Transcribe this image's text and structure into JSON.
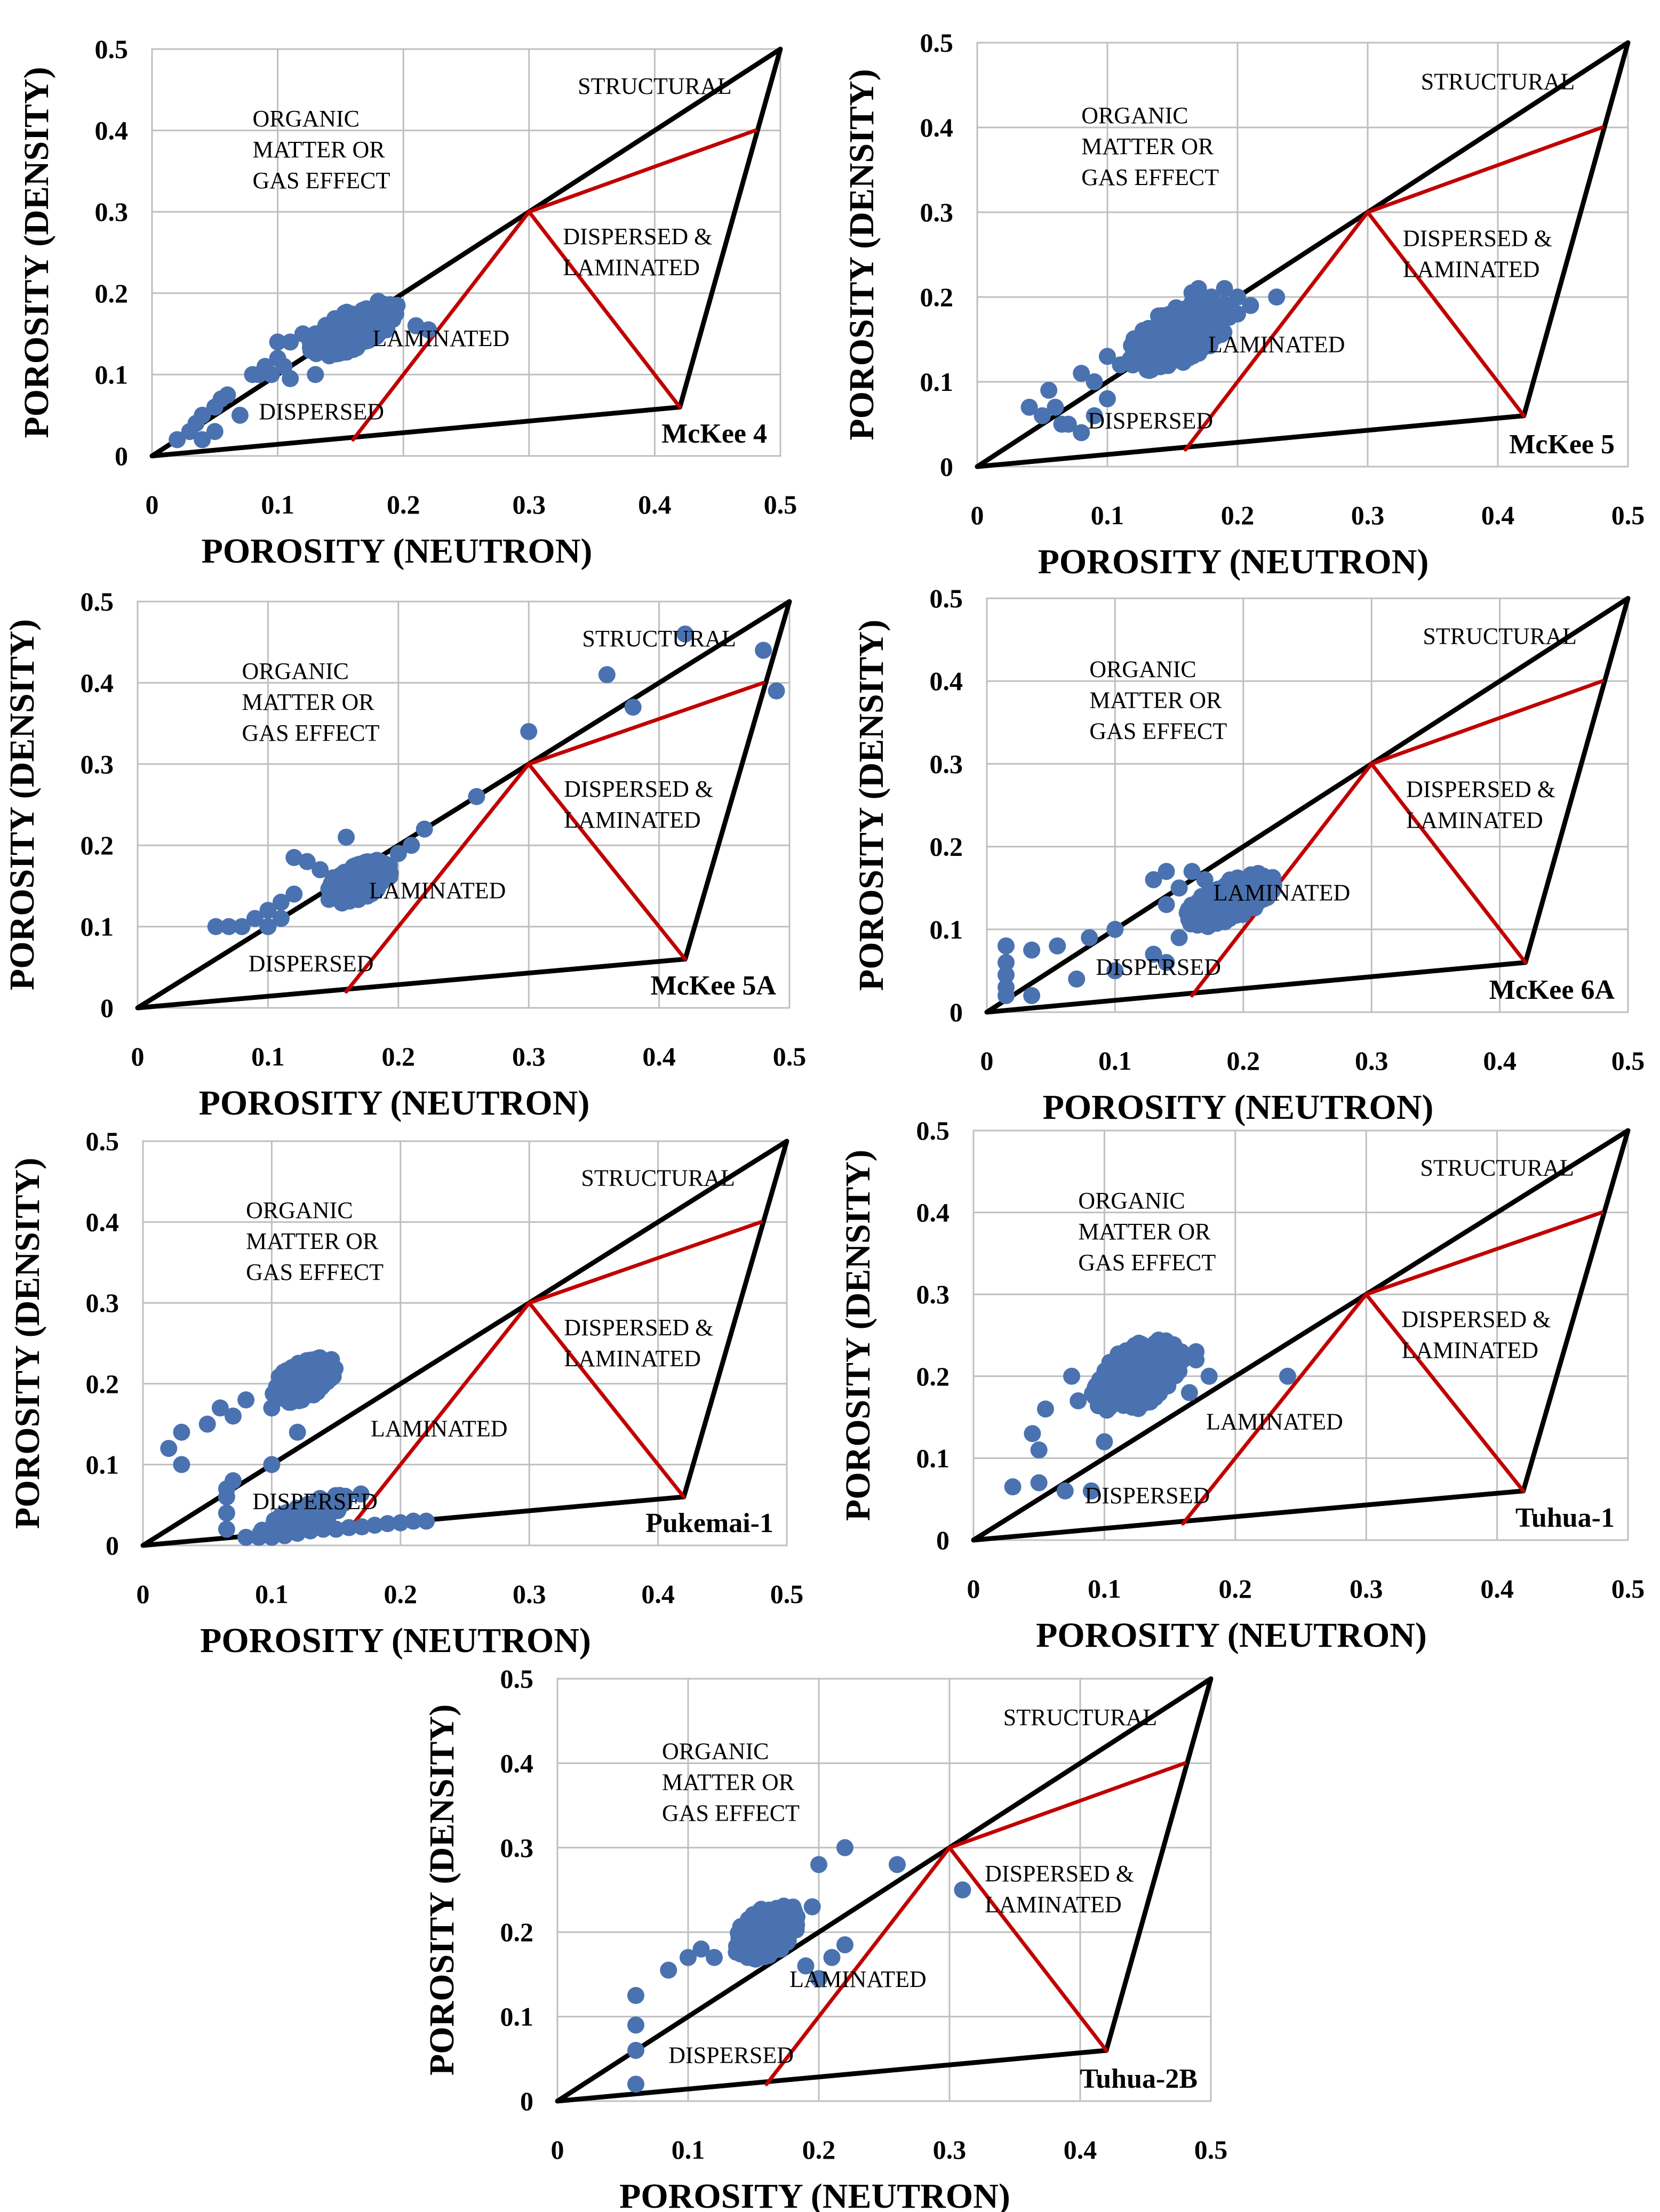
{
  "figure": {
    "background": "#ffffff"
  },
  "colors": {
    "boundary": "#000000",
    "model_lines": "#c00000",
    "points": "#4a72b0",
    "grid": "#bfbfbf"
  },
  "region_labels": {
    "structural": "STRUCTURAL",
    "organic": [
      "ORGANIC",
      "MATTER OR",
      "GAS EFFECT"
    ],
    "dispersed_laminated": [
      "DISPERSED &",
      "LAMINATED"
    ],
    "laminated": "LAMINATED",
    "dispersed": "DISPERSED"
  },
  "chart_data": [
    {
      "type": "scatter",
      "title": "McKee 4",
      "xlabel": "POROSITY (NEUTRON)",
      "ylabel": "POROSITY (DENSITY)",
      "xlim": [
        0,
        0.5
      ],
      "ylim": [
        0,
        0.5
      ],
      "xticks": [
        "0",
        "0.1",
        "0.2",
        "0.3",
        "0.4",
        "0.5"
      ],
      "yticks": [
        "0",
        "0.1",
        "0.2",
        "0.3",
        "0.4",
        "0.5"
      ],
      "model": {
        "clean": [
          0,
          0
        ],
        "shale": [
          0.42,
          0.06
        ],
        "apex": [
          0.5,
          0.5
        ],
        "tie": [
          0.3,
          0.3
        ],
        "struct": [
          0.48,
          0.4
        ],
        "base": [
          0.16,
          0.02
        ]
      },
      "cloud": [
        {
          "cx": 0.16,
          "cy": 0.155,
          "rx": 0.035,
          "ry": 0.025,
          "n": 200,
          "seed": 11
        }
      ],
      "points": [
        [
          0.02,
          0.02
        ],
        [
          0.03,
          0.03
        ],
        [
          0.035,
          0.04
        ],
        [
          0.04,
          0.05
        ],
        [
          0.05,
          0.06
        ],
        [
          0.055,
          0.07
        ],
        [
          0.06,
          0.075
        ],
        [
          0.07,
          0.05
        ],
        [
          0.08,
          0.1
        ],
        [
          0.085,
          0.1
        ],
        [
          0.09,
          0.11
        ],
        [
          0.095,
          0.1
        ],
        [
          0.1,
          0.12
        ],
        [
          0.105,
          0.11
        ],
        [
          0.1,
          0.14
        ],
        [
          0.11,
          0.14
        ],
        [
          0.11,
          0.095
        ],
        [
          0.12,
          0.15
        ],
        [
          0.13,
          0.15
        ],
        [
          0.13,
          0.1
        ],
        [
          0.21,
          0.16
        ],
        [
          0.22,
          0.155
        ],
        [
          0.19,
          0.18
        ],
        [
          0.18,
          0.19
        ],
        [
          0.195,
          0.185
        ],
        [
          0.04,
          0.02
        ],
        [
          0.05,
          0.03
        ]
      ]
    },
    {
      "type": "scatter",
      "title": "McKee 5",
      "xlabel": "POROSITY (NEUTRON)",
      "ylabel": "POROSITY (DENSITY)",
      "xlim": [
        0,
        0.5
      ],
      "ylim": [
        0,
        0.5
      ],
      "xticks": [
        "0",
        "0.1",
        "0.2",
        "0.3",
        "0.4",
        "0.5"
      ],
      "yticks": [
        "0",
        "0.1",
        "0.2",
        "0.3",
        "0.4",
        "0.5"
      ],
      "model": {
        "clean": [
          0,
          0
        ],
        "shale": [
          0.42,
          0.06
        ],
        "apex": [
          0.5,
          0.5
        ],
        "tie": [
          0.3,
          0.3
        ],
        "struct": [
          0.48,
          0.4
        ],
        "base": [
          0.16,
          0.02
        ]
      },
      "cloud": [
        {
          "cx": 0.155,
          "cy": 0.155,
          "rx": 0.04,
          "ry": 0.035,
          "n": 170,
          "seed": 23
        }
      ],
      "points": [
        [
          0.04,
          0.07
        ],
        [
          0.05,
          0.06
        ],
        [
          0.055,
          0.09
        ],
        [
          0.06,
          0.07
        ],
        [
          0.07,
          0.05
        ],
        [
          0.08,
          0.04
        ],
        [
          0.08,
          0.11
        ],
        [
          0.09,
          0.1
        ],
        [
          0.1,
          0.13
        ],
        [
          0.1,
          0.08
        ],
        [
          0.11,
          0.12
        ],
        [
          0.12,
          0.14
        ],
        [
          0.2,
          0.2
        ],
        [
          0.21,
          0.19
        ],
        [
          0.23,
          0.2
        ],
        [
          0.19,
          0.21
        ],
        [
          0.2,
          0.18
        ],
        [
          0.18,
          0.2
        ],
        [
          0.17,
          0.21
        ],
        [
          0.165,
          0.205
        ],
        [
          0.065,
          0.05
        ],
        [
          0.09,
          0.06
        ]
      ]
    },
    {
      "type": "scatter",
      "title": "McKee 5A",
      "xlabel": "POROSITY (NEUTRON)",
      "ylabel": "POROSITY (DENSITY)",
      "xlim": [
        0,
        0.5
      ],
      "ylim": [
        0,
        0.5
      ],
      "xticks": [
        "0",
        "0.1",
        "0.2",
        "0.3",
        "0.4",
        "0.5"
      ],
      "yticks": [
        "0",
        "0.1",
        "0.2",
        "0.3",
        "0.4",
        "0.5"
      ],
      "model": {
        "clean": [
          0,
          0
        ],
        "shale": [
          0.42,
          0.06
        ],
        "apex": [
          0.5,
          0.5
        ],
        "tie": [
          0.3,
          0.3
        ],
        "struct": [
          0.48,
          0.4
        ],
        "base": [
          0.16,
          0.02
        ]
      },
      "cloud": [
        {
          "cx": 0.17,
          "cy": 0.155,
          "rx": 0.025,
          "ry": 0.022,
          "n": 190,
          "seed": 37
        }
      ],
      "points": [
        [
          0.06,
          0.1
        ],
        [
          0.07,
          0.1
        ],
        [
          0.08,
          0.1
        ],
        [
          0.09,
          0.11
        ],
        [
          0.1,
          0.12
        ],
        [
          0.11,
          0.13
        ],
        [
          0.12,
          0.14
        ],
        [
          0.12,
          0.185
        ],
        [
          0.13,
          0.18
        ],
        [
          0.14,
          0.17
        ],
        [
          0.15,
          0.16
        ],
        [
          0.16,
          0.21
        ],
        [
          0.2,
          0.19
        ],
        [
          0.21,
          0.2
        ],
        [
          0.22,
          0.22
        ],
        [
          0.26,
          0.26
        ],
        [
          0.3,
          0.34
        ],
        [
          0.36,
          0.41
        ],
        [
          0.38,
          0.37
        ],
        [
          0.42,
          0.46
        ],
        [
          0.48,
          0.44
        ],
        [
          0.49,
          0.39
        ],
        [
          0.1,
          0.1
        ],
        [
          0.11,
          0.11
        ]
      ]
    },
    {
      "type": "scatter",
      "title": "McKee 6A",
      "xlabel": "POROSITY (NEUTRON)",
      "ylabel": "POROSITY (DENSITY)",
      "xlim": [
        0,
        0.5
      ],
      "ylim": [
        0,
        0.5
      ],
      "xticks": [
        "0",
        "0.1",
        "0.2",
        "0.3",
        "0.4",
        "0.5"
      ],
      "yticks": [
        "0",
        "0.1",
        "0.2",
        "0.3",
        "0.4",
        "0.5"
      ],
      "model": {
        "clean": [
          0,
          0
        ],
        "shale": [
          0.42,
          0.06
        ],
        "apex": [
          0.5,
          0.5
        ],
        "tie": [
          0.3,
          0.3
        ],
        "struct": [
          0.48,
          0.4
        ],
        "base": [
          0.16,
          0.02
        ]
      },
      "cloud": [
        {
          "cx": 0.19,
          "cy": 0.135,
          "rx": 0.035,
          "ry": 0.025,
          "n": 170,
          "seed": 41
        }
      ],
      "points": [
        [
          0.015,
          0.08
        ],
        [
          0.015,
          0.06
        ],
        [
          0.015,
          0.045
        ],
        [
          0.015,
          0.03
        ],
        [
          0.015,
          0.02
        ],
        [
          0.035,
          0.075
        ],
        [
          0.035,
          0.02
        ],
        [
          0.055,
          0.08
        ],
        [
          0.08,
          0.09
        ],
        [
          0.07,
          0.04
        ],
        [
          0.1,
          0.1
        ],
        [
          0.13,
          0.16
        ],
        [
          0.14,
          0.17
        ],
        [
          0.15,
          0.15
        ],
        [
          0.14,
          0.13
        ],
        [
          0.13,
          0.07
        ],
        [
          0.14,
          0.06
        ],
        [
          0.1,
          0.05
        ],
        [
          0.15,
          0.09
        ],
        [
          0.17,
          0.16
        ],
        [
          0.16,
          0.17
        ]
      ]
    },
    {
      "type": "scatter",
      "title": "Pukemai-1",
      "xlabel": "POROSITY (NEUTRON)",
      "ylabel": "POROSITY (DENSITY)",
      "xlim": [
        0,
        0.5
      ],
      "ylim": [
        0,
        0.5
      ],
      "xticks": [
        "0",
        "0.1",
        "0.2",
        "0.3",
        "0.4",
        "0.5"
      ],
      "yticks": [
        "0",
        "0.1",
        "0.2",
        "0.3",
        "0.4",
        "0.5"
      ],
      "model": {
        "clean": [
          0,
          0
        ],
        "shale": [
          0.42,
          0.06
        ],
        "apex": [
          0.5,
          0.5
        ],
        "tie": [
          0.3,
          0.3
        ],
        "struct": [
          0.48,
          0.4
        ],
        "base": [
          0.16,
          0.02
        ]
      },
      "cloud": [
        {
          "cx": 0.125,
          "cy": 0.205,
          "rx": 0.025,
          "ry": 0.025,
          "n": 150,
          "seed": 53
        },
        {
          "cx": 0.13,
          "cy": 0.04,
          "rx": 0.04,
          "ry": 0.015,
          "n": 40,
          "seed": 59
        }
      ],
      "points": [
        [
          0.02,
          0.12
        ],
        [
          0.03,
          0.14
        ],
        [
          0.03,
          0.1
        ],
        [
          0.05,
          0.15
        ],
        [
          0.06,
          0.17
        ],
        [
          0.07,
          0.16
        ],
        [
          0.08,
          0.18
        ],
        [
          0.1,
          0.17
        ],
        [
          0.1,
          0.1
        ],
        [
          0.12,
          0.14
        ],
        [
          0.065,
          0.07
        ],
        [
          0.065,
          0.06
        ],
        [
          0.065,
          0.04
        ],
        [
          0.065,
          0.02
        ],
        [
          0.07,
          0.08
        ],
        [
          0.08,
          0.01
        ],
        [
          0.09,
          0.01
        ],
        [
          0.1,
          0.01
        ],
        [
          0.11,
          0.012
        ],
        [
          0.12,
          0.015
        ],
        [
          0.13,
          0.018
        ],
        [
          0.14,
          0.02
        ],
        [
          0.15,
          0.02
        ],
        [
          0.16,
          0.022
        ],
        [
          0.17,
          0.023
        ],
        [
          0.18,
          0.025
        ],
        [
          0.19,
          0.027
        ],
        [
          0.2,
          0.028
        ],
        [
          0.21,
          0.03
        ],
        [
          0.22,
          0.03
        ]
      ]
    },
    {
      "type": "scatter",
      "title": "Tuhua-1",
      "xlabel": "POROSITY (NEUTRON)",
      "ylabel": "POROSITY (DENSITY)",
      "xlim": [
        0,
        0.5
      ],
      "ylim": [
        0,
        0.5
      ],
      "xticks": [
        "0",
        "0.1",
        "0.2",
        "0.3",
        "0.4",
        "0.5"
      ],
      "yticks": [
        "0",
        "0.1",
        "0.2",
        "0.3",
        "0.4",
        "0.5"
      ],
      "model": {
        "clean": [
          0,
          0
        ],
        "shale": [
          0.42,
          0.06
        ],
        "apex": [
          0.5,
          0.5
        ],
        "tie": [
          0.3,
          0.3
        ],
        "struct": [
          0.48,
          0.4
        ],
        "base": [
          0.16,
          0.02
        ]
      },
      "cloud": [
        {
          "cx": 0.125,
          "cy": 0.2,
          "rx": 0.035,
          "ry": 0.04,
          "n": 200,
          "seed": 67
        }
      ],
      "points": [
        [
          0.03,
          0.065
        ],
        [
          0.045,
          0.13
        ],
        [
          0.05,
          0.11
        ],
        [
          0.05,
          0.07
        ],
        [
          0.055,
          0.16
        ],
        [
          0.07,
          0.06
        ],
        [
          0.075,
          0.2
        ],
        [
          0.08,
          0.17
        ],
        [
          0.09,
          0.06
        ],
        [
          0.1,
          0.12
        ],
        [
          0.24,
          0.2
        ],
        [
          0.16,
          0.22
        ],
        [
          0.17,
          0.23
        ],
        [
          0.18,
          0.2
        ],
        [
          0.165,
          0.18
        ],
        [
          0.17,
          0.22
        ]
      ]
    },
    {
      "type": "scatter",
      "title": "Tuhua-2B",
      "xlabel": "POROSITY (NEUTRON)",
      "ylabel": "POROSITY (DENSITY)",
      "xlim": [
        0,
        0.5
      ],
      "ylim": [
        0,
        0.5
      ],
      "xticks": [
        "0",
        "0.1",
        "0.2",
        "0.3",
        "0.4",
        "0.5"
      ],
      "yticks": [
        "0",
        "0.1",
        "0.2",
        "0.3",
        "0.4",
        "0.5"
      ],
      "model": {
        "clean": [
          0,
          0
        ],
        "shale": [
          0.42,
          0.06
        ],
        "apex": [
          0.5,
          0.5
        ],
        "tie": [
          0.3,
          0.3
        ],
        "struct": [
          0.48,
          0.4
        ],
        "base": [
          0.16,
          0.02
        ]
      },
      "cloud": [
        {
          "cx": 0.16,
          "cy": 0.2,
          "rx": 0.025,
          "ry": 0.03,
          "n": 170,
          "seed": 79
        }
      ],
      "points": [
        [
          0.06,
          0.02
        ],
        [
          0.06,
          0.06
        ],
        [
          0.06,
          0.09
        ],
        [
          0.06,
          0.125
        ],
        [
          0.085,
          0.155
        ],
        [
          0.1,
          0.17
        ],
        [
          0.11,
          0.18
        ],
        [
          0.12,
          0.17
        ],
        [
          0.2,
          0.145
        ],
        [
          0.21,
          0.17
        ],
        [
          0.22,
          0.185
        ],
        [
          0.2,
          0.28
        ],
        [
          0.22,
          0.3
        ],
        [
          0.26,
          0.28
        ],
        [
          0.31,
          0.25
        ],
        [
          0.19,
          0.16
        ],
        [
          0.195,
          0.23
        ]
      ]
    }
  ]
}
